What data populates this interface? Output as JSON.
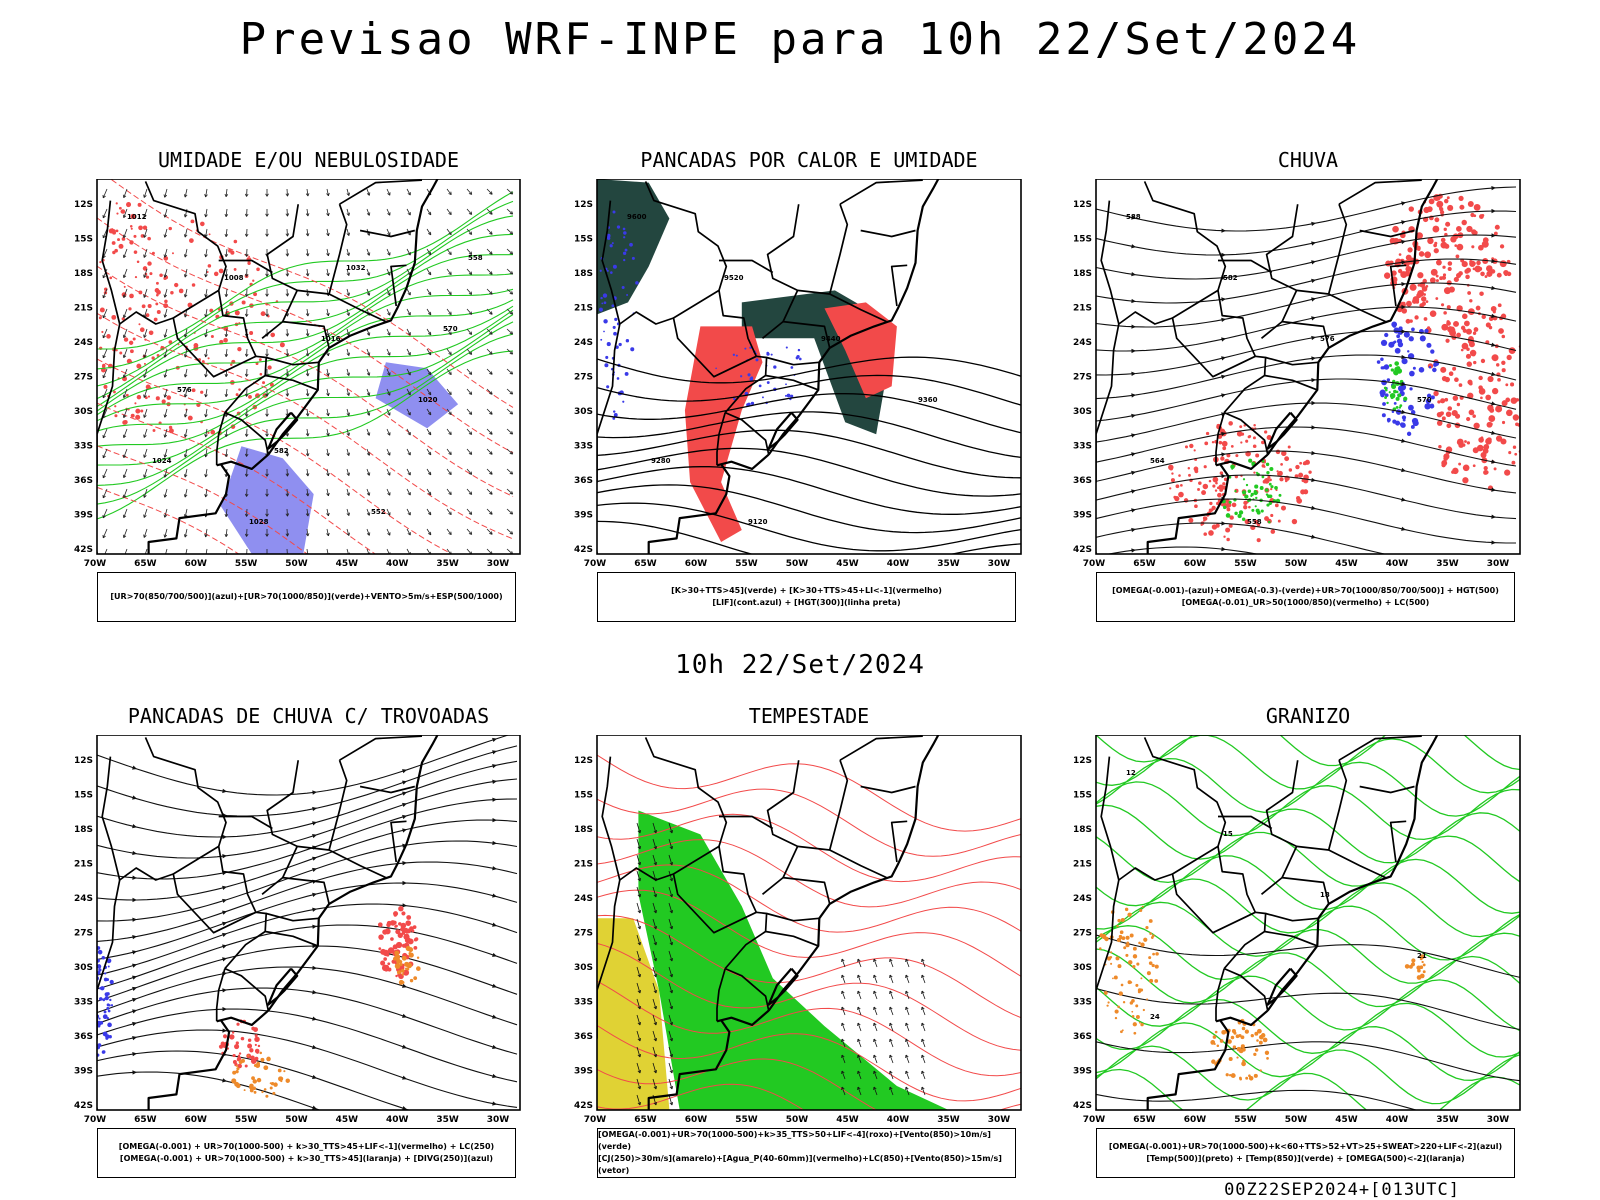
{
  "title": "Previsao WRF-INPE  para 10h 22/Set/2024",
  "subtitle": "10h 22/Set/2024",
  "footer": "00Z22SEP2024+[013UTC]",
  "axes": {
    "lat_labels": [
      "12S",
      "15S",
      "18S",
      "21S",
      "24S",
      "27S",
      "30S",
      "33S",
      "36S",
      "39S",
      "42S"
    ],
    "lon_labels": [
      "70W",
      "65W",
      "60W",
      "55W",
      "50W",
      "45W",
      "40W",
      "35W",
      "30W"
    ]
  },
  "colors": {
    "red": "#f24a4a",
    "green": "#22c922",
    "blue": "#3a3ae8",
    "violet": "#8f8ff0",
    "darkteal": "#23463f",
    "yellow": "#e0d234",
    "orange": "#ee8a2a",
    "black": "#000000"
  },
  "panels": [
    {
      "id": "umidade",
      "title": "UMIDADE E/OU NEBULOSIDADE",
      "legend": [
        "[UR>70(850/700/500)](azul)+[UR>70(1000/850)](verde)+VENTO>5m/s+ESP(500/1000)"
      ],
      "contour_labels": [
        "1012",
        "1008",
        "1016",
        "1020",
        "1024",
        "1028",
        "1032",
        "570",
        "576",
        "582",
        "552",
        "558"
      ]
    },
    {
      "id": "pancadas",
      "title": "PANCADAS POR CALOR E UMIDADE",
      "legend": [
        "[K>30+TTS>45](verde) + [K>30+TTS>45+LI<-1](vermelho)",
        "[LIF](cont.azul) + [HGT(300)](linha preta)"
      ],
      "contour_labels": [
        "9600",
        "9520",
        "9440",
        "9360",
        "9280",
        "9120"
      ]
    },
    {
      "id": "chuva",
      "title": "CHUVA",
      "legend": [
        "[OMEGA(-0.001)-(azul)+OMEGA(-0.3)-(verde)+UR>70(1000/850/700/500)] + HGT(500)",
        "[OMEGA(-0.01)_UR>50(1000/850)(vermelho) + LC(500)"
      ],
      "contour_labels": [
        "588",
        "582",
        "576",
        "570",
        "564",
        "558"
      ]
    },
    {
      "id": "trovoadas",
      "title": "PANCADAS DE CHUVA C/ TROVOADAS",
      "legend": [
        "[OMEGA(-0.001) + UR>70(1000-500) + k>30_TTS>45+LIF<-1](vermelho) + LC(250)",
        "[OMEGA(-0.001) + UR>70(1000-500) + k>30_TTS>45](laranja) + [DIVG(250)](azul)"
      ],
      "contour_labels": []
    },
    {
      "id": "tempestade",
      "title": "TEMPESTADE",
      "legend": [
        "[OMEGA(-0.001)+UR>70(1000-500)+k>35_TTS>50+LIF<-4](roxo)+[Vento(850)>10m/s](verde)",
        "[CJ(250)>30m/s](amarelo)+[Agua_P(40-60mm)](vermelho)+LC(850)+[Vento(850)>15m/s](vetor)"
      ],
      "contour_labels": []
    },
    {
      "id": "granizo",
      "title": "GRANIZO",
      "legend": [
        "[OMEGA(-0.001)+UR>70(1000-500)+k<60+TTS>52+VT>25+SWEAT>220+LIF<-2](azul)",
        "[Temp(500)](preto) + [Temp(850)](verde) + [OMEGA(500)<-2](laranja)"
      ],
      "contour_labels": [
        "12",
        "15",
        "18",
        "21",
        "24"
      ]
    }
  ]
}
